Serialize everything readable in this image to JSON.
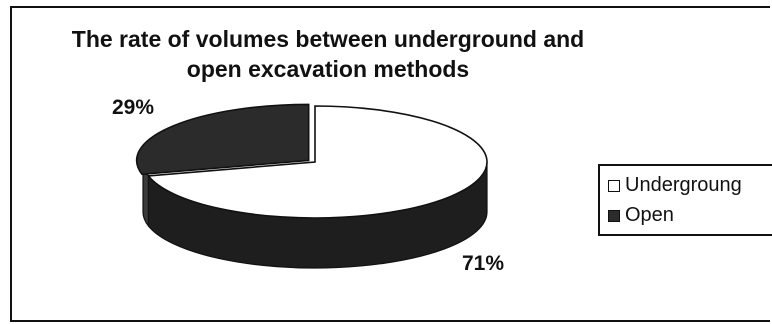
{
  "chart_data": {
    "type": "pie",
    "title_line1": "The rate of volumes between underground and",
    "title_line2": "open excavation methods",
    "slices": [
      {
        "name": "Undergroung",
        "value": 71,
        "label": "71%",
        "color": "#ffffff"
      },
      {
        "name": "Open",
        "value": 29,
        "label": "29%",
        "color": "#2b2b2b"
      }
    ],
    "legend": {
      "position": "right",
      "entries": [
        "Undergroung",
        "Open"
      ]
    }
  }
}
